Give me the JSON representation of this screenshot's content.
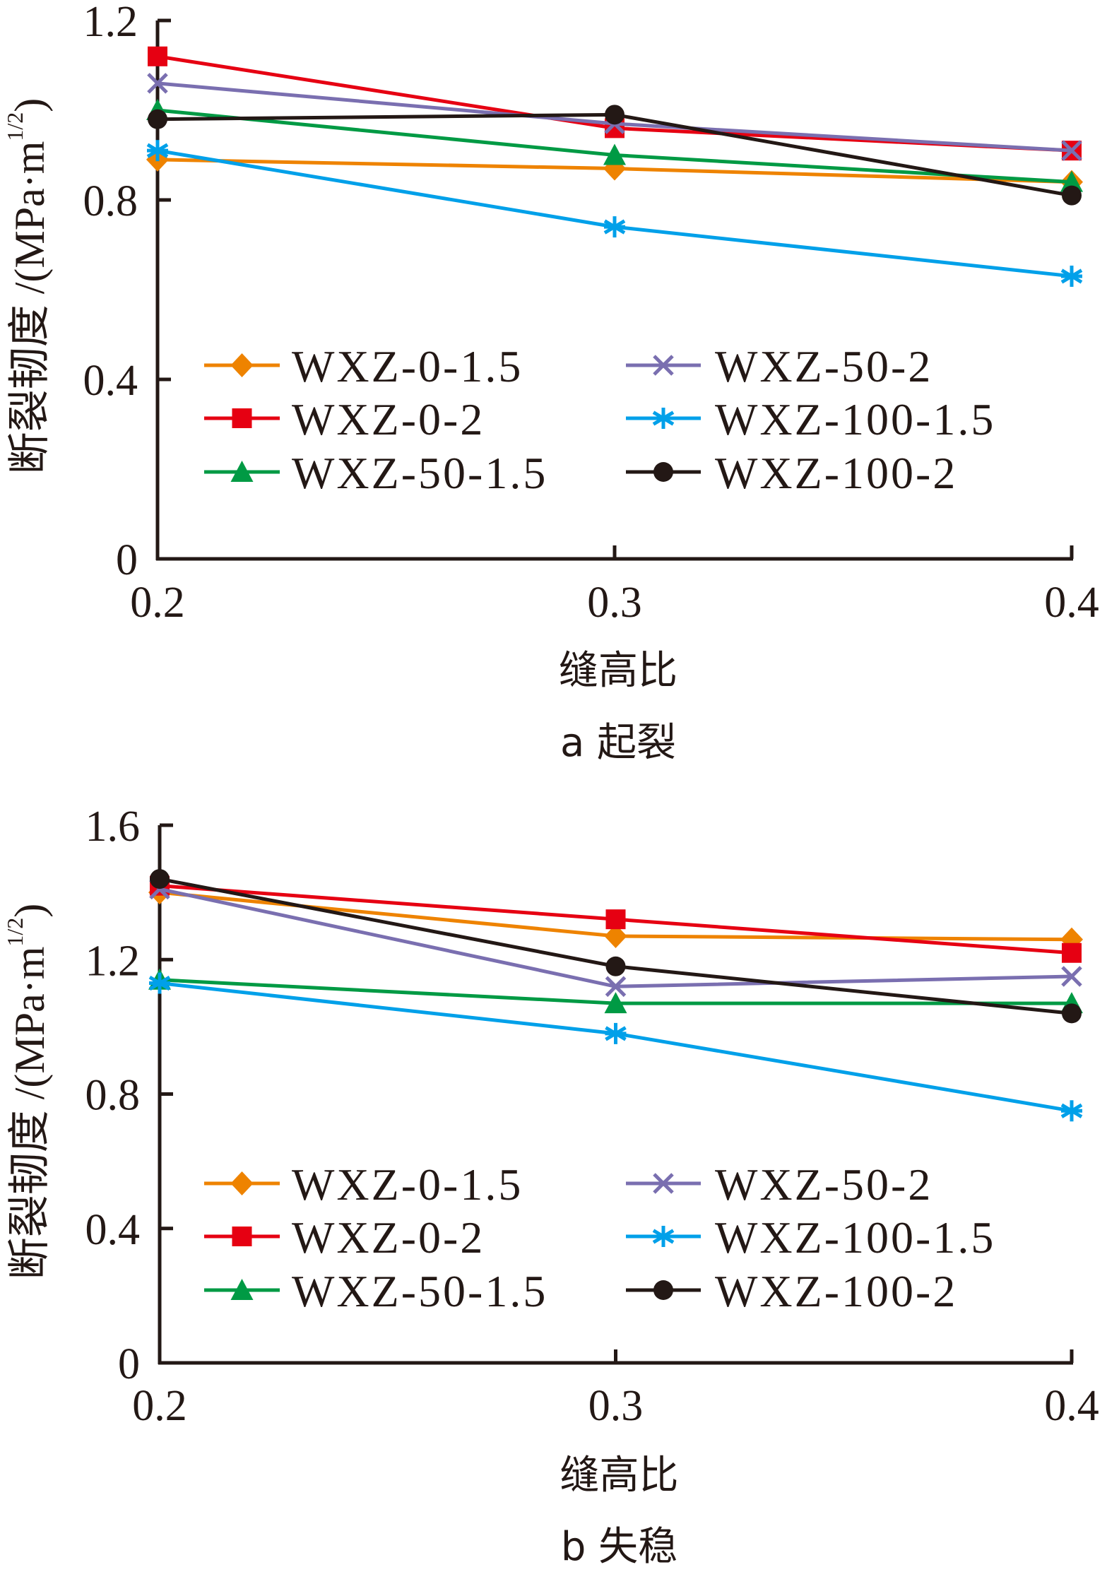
{
  "chart_data": [
    {
      "type": "line",
      "panel": "a",
      "title": "a 起裂",
      "xlabel": "缝高比",
      "ylabel": "断裂韧度 /(MPa·m",
      "ylabel_sup": "1/2",
      "ylabel_close": ")",
      "x": [
        0.2,
        0.3,
        0.4
      ],
      "x_tick_labels": [
        "0.2",
        "0.3",
        "0.4"
      ],
      "xlim": [
        0.2,
        0.4
      ],
      "ylim": [
        0,
        1.2
      ],
      "y_ticks": [
        0,
        0.4,
        0.8,
        1.2
      ],
      "y_tick_labels": [
        "0",
        "0.4",
        "0.8",
        "1.2"
      ],
      "grid": false,
      "legend_position": "lower-center, 2 columns",
      "series": [
        {
          "name": "WXZ-0-1.5",
          "color": "#ee8300",
          "marker": "diamond",
          "values": [
            0.89,
            0.87,
            0.84
          ]
        },
        {
          "name": "WXZ-0-2",
          "color": "#e60012",
          "marker": "square",
          "values": [
            1.12,
            0.96,
            0.91
          ]
        },
        {
          "name": "WXZ-50-1.5",
          "color": "#009a44",
          "marker": "triangle",
          "values": [
            1.0,
            0.9,
            0.84
          ]
        },
        {
          "name": "WXZ-50-2",
          "color": "#7a6fb0",
          "marker": "x",
          "values": [
            1.06,
            0.97,
            0.91
          ]
        },
        {
          "name": "WXZ-100-1.5",
          "color": "#00a0e9",
          "marker": "asterisk",
          "values": [
            0.91,
            0.74,
            0.63
          ]
        },
        {
          "name": "WXZ-100-2",
          "color": "#231815",
          "marker": "circle",
          "values": [
            0.98,
            0.99,
            0.81
          ]
        }
      ]
    },
    {
      "type": "line",
      "panel": "b",
      "title": "b 失稳",
      "xlabel": "缝高比",
      "ylabel": "断裂韧度 /(MPa·m",
      "ylabel_sup": "1/2",
      "ylabel_close": ")",
      "x": [
        0.2,
        0.3,
        0.4
      ],
      "x_tick_labels": [
        "0.2",
        "0.3",
        "0.4"
      ],
      "xlim": [
        0.2,
        0.4
      ],
      "ylim": [
        0,
        1.6
      ],
      "y_ticks": [
        0,
        0.4,
        0.8,
        1.2,
        1.6
      ],
      "y_tick_labels": [
        "0",
        "0.4",
        "0.8",
        "1.2",
        "1.6"
      ],
      "grid": false,
      "legend_position": "lower-center, 2 columns",
      "series": [
        {
          "name": "WXZ-0-1.5",
          "color": "#ee8300",
          "marker": "diamond",
          "values": [
            1.4,
            1.27,
            1.26
          ]
        },
        {
          "name": "WXZ-0-2",
          "color": "#e60012",
          "marker": "square",
          "values": [
            1.42,
            1.32,
            1.22
          ]
        },
        {
          "name": "WXZ-50-1.5",
          "color": "#009a44",
          "marker": "triangle",
          "values": [
            1.14,
            1.07,
            1.07
          ]
        },
        {
          "name": "WXZ-50-2",
          "color": "#7a6fb0",
          "marker": "x",
          "values": [
            1.41,
            1.12,
            1.15
          ]
        },
        {
          "name": "WXZ-100-1.5",
          "color": "#00a0e9",
          "marker": "asterisk",
          "values": [
            1.13,
            0.98,
            0.75
          ]
        },
        {
          "name": "WXZ-100-2",
          "color": "#231815",
          "marker": "circle",
          "values": [
            1.44,
            1.18,
            1.04
          ]
        }
      ]
    }
  ]
}
